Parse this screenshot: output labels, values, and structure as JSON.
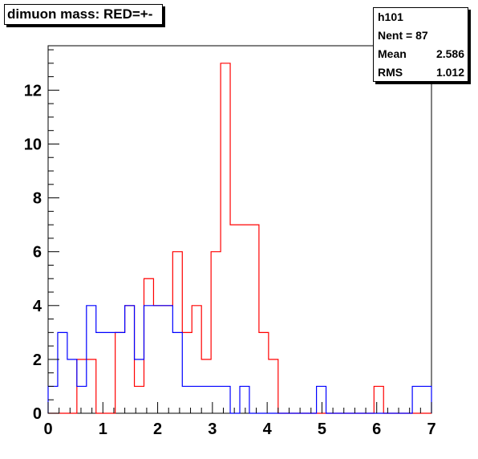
{
  "stats": {
    "name": "h101",
    "entries_label": "Nent = 87",
    "mean_label": "Mean",
    "mean_value": "2.586",
    "rms_label": "RMS",
    "rms_value": "1.012"
  },
  "chart_data": {
    "type": "histogram",
    "title": "dimuon mass: RED=+-",
    "xlabel": "",
    "ylabel": "",
    "xlim": [
      0,
      7
    ],
    "ylim": [
      0,
      13.65
    ],
    "bin_width": 0.175,
    "x_ticks": [
      "0",
      "1",
      "2",
      "3",
      "4",
      "5",
      "6",
      "7"
    ],
    "y_ticks": [
      "0",
      "2",
      "4",
      "6",
      "8",
      "10",
      "12"
    ],
    "grid": false,
    "series": [
      {
        "color": "#ff0000",
        "values": [
          0,
          0,
          0,
          2,
          2,
          0,
          0,
          3,
          4,
          1,
          5,
          4,
          4,
          6,
          3,
          4,
          2,
          6,
          13,
          7,
          7,
          7,
          3,
          2,
          0,
          0,
          0,
          0,
          0,
          0,
          0,
          0,
          0,
          0,
          1,
          0,
          0,
          0,
          0,
          0
        ]
      },
      {
        "color": "#0000ff",
        "values": [
          1,
          3,
          2,
          1,
          4,
          3,
          3,
          3,
          4,
          2,
          4,
          4,
          4,
          3,
          1,
          1,
          1,
          1,
          1,
          0,
          1,
          0,
          0,
          0,
          0,
          0,
          0,
          0,
          1,
          0,
          0,
          0,
          0,
          0,
          0,
          0,
          0,
          0,
          1,
          1
        ]
      }
    ]
  }
}
